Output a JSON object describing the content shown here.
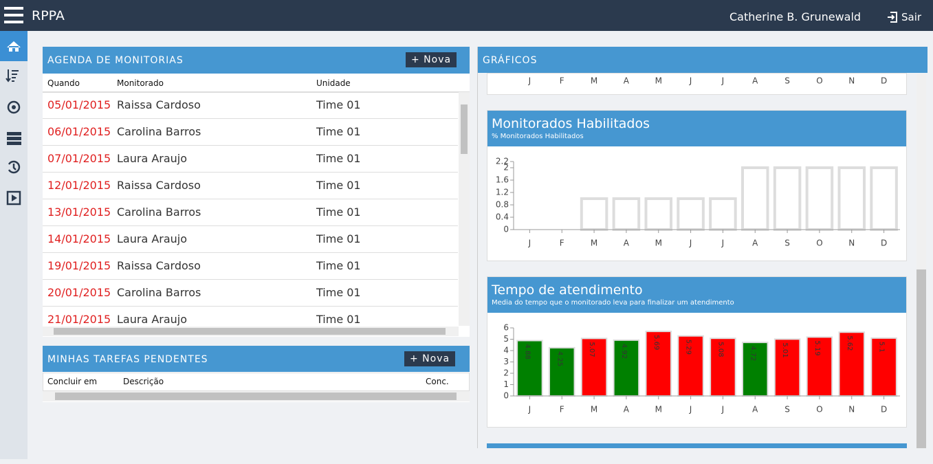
{
  "header": {
    "app": "RPPA",
    "user": "Catherine B. Grunewald",
    "logout": "Sair"
  },
  "agenda": {
    "title": "AGENDA DE MONITORIAS",
    "button": "+ Nova",
    "columns": [
      "Quando",
      "Monitorado",
      "Unidade"
    ],
    "rows": [
      [
        "05/01/2015",
        "Raissa Cardoso",
        "Time 01"
      ],
      [
        "06/01/2015",
        "Carolina Barros",
        "Time 01"
      ],
      [
        "07/01/2015",
        "Laura Araujo",
        "Time 01"
      ],
      [
        "12/01/2015",
        "Raissa Cardoso",
        "Time 01"
      ],
      [
        "13/01/2015",
        "Carolina Barros",
        "Time 01"
      ],
      [
        "14/01/2015",
        "Laura Araujo",
        "Time 01"
      ],
      [
        "19/01/2015",
        "Raissa Cardoso",
        "Time 01"
      ],
      [
        "20/01/2015",
        "Carolina Barros",
        "Time 01"
      ],
      [
        "21/01/2015",
        "Laura Araujo",
        "Time 01"
      ]
    ]
  },
  "tarefas": {
    "title": "MINHAS TAREFAS PENDENTES",
    "button": "+ Nova",
    "columns": [
      "Concluir em",
      "Descrição",
      "Conc."
    ]
  },
  "graficos": {
    "title": "GRÁFICOS"
  },
  "cropped_chart": {
    "categories": [
      "J",
      "F",
      "M",
      "A",
      "M",
      "J",
      "J",
      "A",
      "S",
      "O",
      "N",
      "D"
    ]
  },
  "chart_data": [
    {
      "type": "bar",
      "title": "Monitorados Habilitados",
      "subtitle": "% Monitorados Habilitados",
      "categories": [
        "J",
        "F",
        "M",
        "A",
        "M",
        "J",
        "J",
        "A",
        "S",
        "O",
        "N",
        "D"
      ],
      "values": [
        0,
        0,
        1,
        1,
        1,
        1,
        1,
        2,
        2,
        2,
        2,
        2
      ],
      "color": "#ffffff",
      "ylim": [
        0,
        2.2
      ],
      "yticks": [
        0,
        0.4,
        0.8,
        1.2,
        1.6,
        2,
        2.2
      ]
    },
    {
      "type": "bar",
      "title": "Tempo de atendimento",
      "subtitle": "Media do tempo que o monitorado leva para finalizar um atendimento",
      "categories": [
        "J",
        "F",
        "M",
        "A",
        "M",
        "J",
        "J",
        "A",
        "S",
        "O",
        "N",
        "D"
      ],
      "values": [
        4.88,
        4.25,
        5.07,
        4.92,
        5.69,
        5.29,
        5.08,
        4.72,
        5.01,
        5.19,
        5.62,
        5.1
      ],
      "colors": [
        "#008000",
        "#008000",
        "#ff0000",
        "#008000",
        "#ff0000",
        "#ff0000",
        "#ff0000",
        "#008000",
        "#ff0000",
        "#ff0000",
        "#ff0000",
        "#ff0000"
      ],
      "ylim": [
        0,
        6
      ],
      "yticks": [
        0,
        1,
        2,
        3,
        4,
        5,
        6
      ],
      "data_labels": true
    }
  ]
}
